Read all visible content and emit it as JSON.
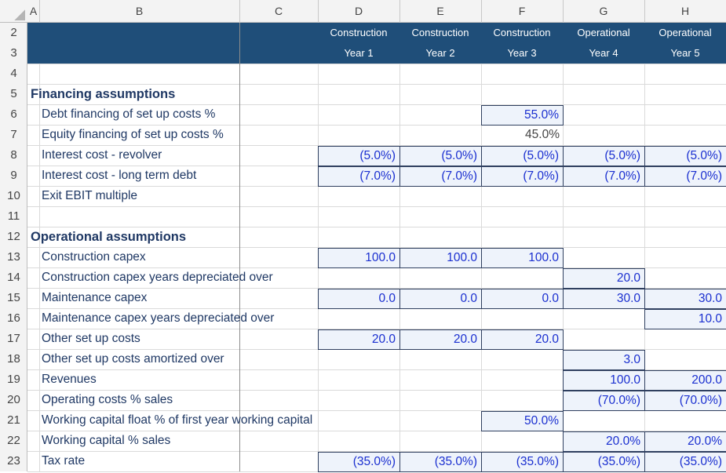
{
  "column_headers": [
    "A",
    "B",
    "C",
    "D",
    "E",
    "F",
    "G",
    "H"
  ],
  "row_numbers": [
    2,
    3,
    4,
    5,
    6,
    7,
    8,
    9,
    10,
    11,
    12,
    13,
    14,
    15,
    16,
    17,
    18,
    19,
    20,
    21,
    22,
    23
  ],
  "period_headers": [
    {
      "line1": "Construction",
      "line2": "Year 1"
    },
    {
      "line1": "Construction",
      "line2": "Year 2"
    },
    {
      "line1": "Construction",
      "line2": "Year 3"
    },
    {
      "line1": "Operational",
      "line2": "Year 4"
    },
    {
      "line1": "Operational",
      "line2": "Year 5"
    }
  ],
  "lines": [
    null,
    {
      "kind": "section",
      "label": "Financing assumptions"
    },
    {
      "kind": "input",
      "label": "Debt financing of set up costs %",
      "cells": [
        null,
        null,
        "55.0%",
        null,
        null
      ]
    },
    {
      "kind": "calc",
      "label": "Equity financing of set up costs %",
      "cells": [
        null,
        null,
        "45.0%",
        null,
        null
      ]
    },
    {
      "kind": "input",
      "label": "Interest cost - revolver",
      "cells": [
        "(5.0%)",
        "(5.0%)",
        "(5.0%)",
        "(5.0%)",
        "(5.0%)"
      ]
    },
    {
      "kind": "input",
      "label": "Interest cost - long term debt",
      "cells": [
        "(7.0%)",
        "(7.0%)",
        "(7.0%)",
        "(7.0%)",
        "(7.0%)"
      ]
    },
    {
      "kind": "input",
      "label": "Exit EBIT multiple",
      "cells": [
        null,
        null,
        null,
        null,
        null
      ]
    },
    null,
    {
      "kind": "section",
      "label": "Operational assumptions"
    },
    {
      "kind": "input",
      "label": "Construction capex",
      "cells": [
        "100.0",
        "100.0",
        "100.0",
        null,
        null
      ]
    },
    {
      "kind": "input",
      "label": "Construction capex years depreciated over",
      "cells": [
        null,
        null,
        null,
        "20.0",
        null
      ]
    },
    {
      "kind": "input",
      "label": "Maintenance capex",
      "cells": [
        "0.0",
        "0.0",
        "0.0",
        "30.0",
        "30.0"
      ]
    },
    {
      "kind": "input",
      "label": "Maintenance capex years depreciated over",
      "cells": [
        null,
        null,
        null,
        null,
        "10.0"
      ]
    },
    {
      "kind": "input",
      "label": "Other set up costs",
      "cells": [
        "20.0",
        "20.0",
        "20.0",
        null,
        null
      ]
    },
    {
      "kind": "input",
      "label": "Other set up costs amortized over",
      "cells": [
        null,
        null,
        null,
        "3.0",
        null
      ]
    },
    {
      "kind": "input",
      "label": "Revenues",
      "cells": [
        null,
        null,
        null,
        "100.0",
        "200.0"
      ]
    },
    {
      "kind": "input",
      "label": "Operating costs % sales",
      "cells": [
        null,
        null,
        null,
        "(70.0%)",
        "(70.0%)"
      ]
    },
    {
      "kind": "input",
      "label": "Working capital float % of first year working capital",
      "cells": [
        null,
        null,
        "50.0%",
        null,
        null
      ]
    },
    {
      "kind": "input",
      "label": "Working capital % sales",
      "cells": [
        null,
        null,
        null,
        "20.0%",
        "20.0%"
      ]
    },
    {
      "kind": "input",
      "label": "Tax rate",
      "cells": [
        "(35.0%)",
        "(35.0%)",
        "(35.0%)",
        "(35.0%)",
        "(35.0%)"
      ]
    }
  ]
}
